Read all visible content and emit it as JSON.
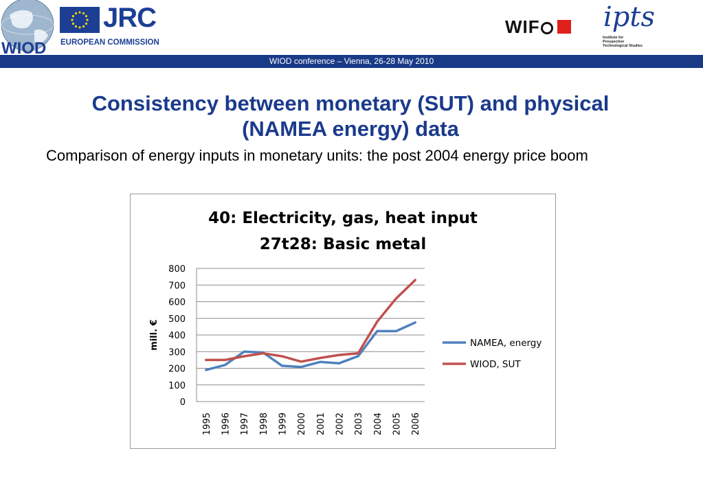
{
  "header": {
    "wiod_logo_text": "WIOD",
    "jrc_text": "JRC",
    "ec_text": "EUROPEAN COMMISSION",
    "wifo_text": "WIF",
    "ipts_text": "ipts",
    "ipts_subtitle": [
      "Institute for",
      "Prospective",
      "Technological Studies"
    ]
  },
  "conference_bar": "WIOD conference – Vienna, 26-28 May 2010",
  "slide": {
    "title": "Consistency between monetary (SUT) and physical (NAMEA energy) data",
    "subtitle": "Comparison of energy inputs in monetary units: the post 2004 energy price boom"
  },
  "colors": {
    "brand_blue": "#1c3f94",
    "bar_blue": "#193a87",
    "title_blue": "#1a3a8c",
    "namea": "#4f81bd",
    "wiod": "#c0504d"
  },
  "chart_data": {
    "type": "line",
    "title": [
      "40: Electricity, gas, heat input",
      "27t28: Basic metal"
    ],
    "xlabel": "",
    "ylabel": "mill. €",
    "ylim": [
      0,
      800
    ],
    "yticks": [
      0,
      100,
      200,
      300,
      400,
      500,
      600,
      700,
      800
    ],
    "grid": true,
    "legend_position": "right",
    "x": [
      "1995",
      "1996",
      "1997",
      "1998",
      "1999",
      "2000",
      "2001",
      "2002",
      "2003",
      "2004",
      "2005",
      "2006"
    ],
    "series": [
      {
        "name": "NAMEA, energy",
        "color": "#4f81bd",
        "values": [
          190,
          220,
          300,
          295,
          215,
          208,
          238,
          230,
          273,
          423,
          423,
          475
        ]
      },
      {
        "name": "WIOD, SUT",
        "color": "#c0504d",
        "values": [
          250,
          250,
          272,
          290,
          272,
          240,
          262,
          280,
          290,
          480,
          620,
          730
        ]
      }
    ]
  }
}
